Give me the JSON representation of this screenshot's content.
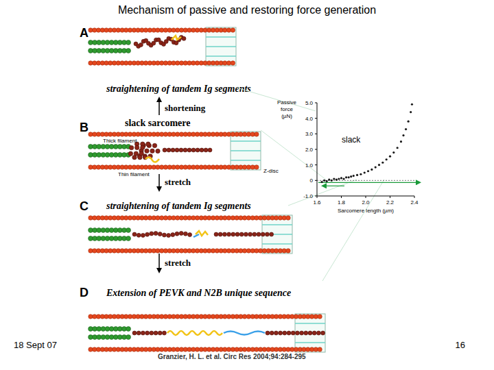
{
  "title": "Mechanism of passive and restoring force generation",
  "panels": [
    {
      "label": "A",
      "caption": "straightening of tandem Ig segments"
    },
    {
      "label": "B",
      "caption": "slack sarcomere",
      "annotations": [
        "Thick filament",
        "Thin filament",
        "Z-disc"
      ]
    },
    {
      "label": "C",
      "caption": "straightening of tandem Ig segments"
    },
    {
      "label": "D",
      "caption": "Extension of PEVK and N2B unique sequence"
    }
  ],
  "transitions": [
    {
      "label": "shortening",
      "direction": "up"
    },
    {
      "label": "stretch",
      "direction": "down"
    },
    {
      "label": "stretch",
      "direction": "down"
    }
  ],
  "chart_data": {
    "type": "scatter",
    "y_label": "Passive force (µN)",
    "x_label": "Sarcomere length (µm)",
    "annotations": [
      "slack"
    ],
    "x": [
      1.64,
      1.66,
      1.68,
      1.7,
      1.72,
      1.74,
      1.76,
      1.78,
      1.8,
      1.82,
      1.84,
      1.86,
      1.88,
      1.9,
      1.93,
      1.96,
      1.99,
      2.02,
      2.05,
      2.08,
      2.11,
      2.14,
      2.17,
      2.2,
      2.23,
      2.26,
      2.29,
      2.31,
      2.33,
      2.35,
      2.37,
      2.38
    ],
    "values": [
      -0.1,
      0.0,
      -0.05,
      0.05,
      0.0,
      0.1,
      0.05,
      0.1,
      0.15,
      0.1,
      0.2,
      0.2,
      0.25,
      0.3,
      0.35,
      0.4,
      0.5,
      0.6,
      0.7,
      0.85,
      1.0,
      1.15,
      1.35,
      1.55,
      1.8,
      2.1,
      2.5,
      2.9,
      3.3,
      3.8,
      4.4,
      4.9
    ],
    "xlim": [
      1.6,
      2.4
    ],
    "ylim": [
      -1,
      5
    ],
    "xticks": [
      1.6,
      1.8,
      {
        "value": 2,
        "label": "2.0"
      },
      2.2,
      2.4
    ],
    "yticks": [
      {
        "value": -1,
        "label": "-1.0"
      },
      0,
      {
        "value": 1,
        "label": "1.0"
      },
      {
        "value": 2,
        "label": "2.0"
      },
      {
        "value": 3,
        "label": "3.0"
      },
      {
        "value": 4,
        "label": "4.0"
      },
      {
        "value": 5,
        "label": "5.0"
      }
    ],
    "color": "#1a1a1a",
    "marker": "dot"
  },
  "footer": {
    "date": "18 Sept 07",
    "citation": "Granzier, H. L. et al. Circ Res 2004;94:284-295",
    "page": 16
  }
}
